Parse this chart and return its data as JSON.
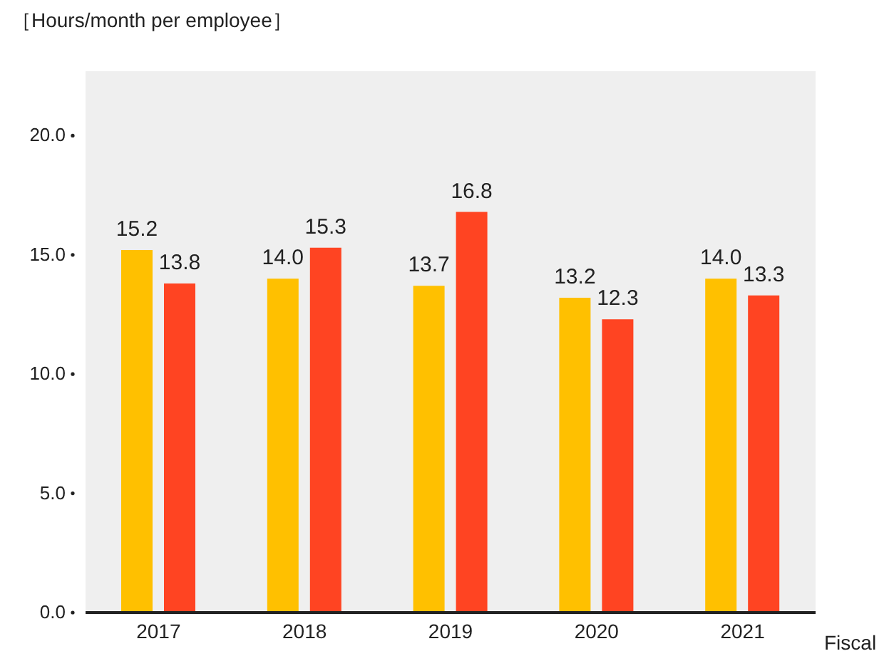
{
  "chart_data": {
    "type": "bar",
    "title": "［Hours/month per employee］",
    "xlabel": "Fiscal",
    "categories": [
      "2017",
      "2018",
      "2019",
      "2020",
      "2021"
    ],
    "series": [
      {
        "color": "#ffc000",
        "values": [
          15.2,
          14.0,
          13.7,
          13.2,
          14.0
        ],
        "value_labels": [
          "15.2",
          "14.0",
          "13.7",
          "13.2",
          "14.0"
        ]
      },
      {
        "color": "#ff4422",
        "values": [
          13.8,
          15.3,
          16.8,
          12.3,
          13.3
        ],
        "value_labels": [
          "13.8",
          "15.3",
          "16.8",
          "12.3",
          "13.3"
        ]
      }
    ],
    "ylim": [
      0,
      22.7
    ],
    "yticks": [
      {
        "value": 0,
        "label": "0.0"
      },
      {
        "value": 5,
        "label": "5.0"
      },
      {
        "value": 10,
        "label": "10.0"
      },
      {
        "value": 15,
        "label": "15.0"
      },
      {
        "value": 20,
        "label": "20.0"
      }
    ],
    "grid": false,
    "legend": false
  }
}
